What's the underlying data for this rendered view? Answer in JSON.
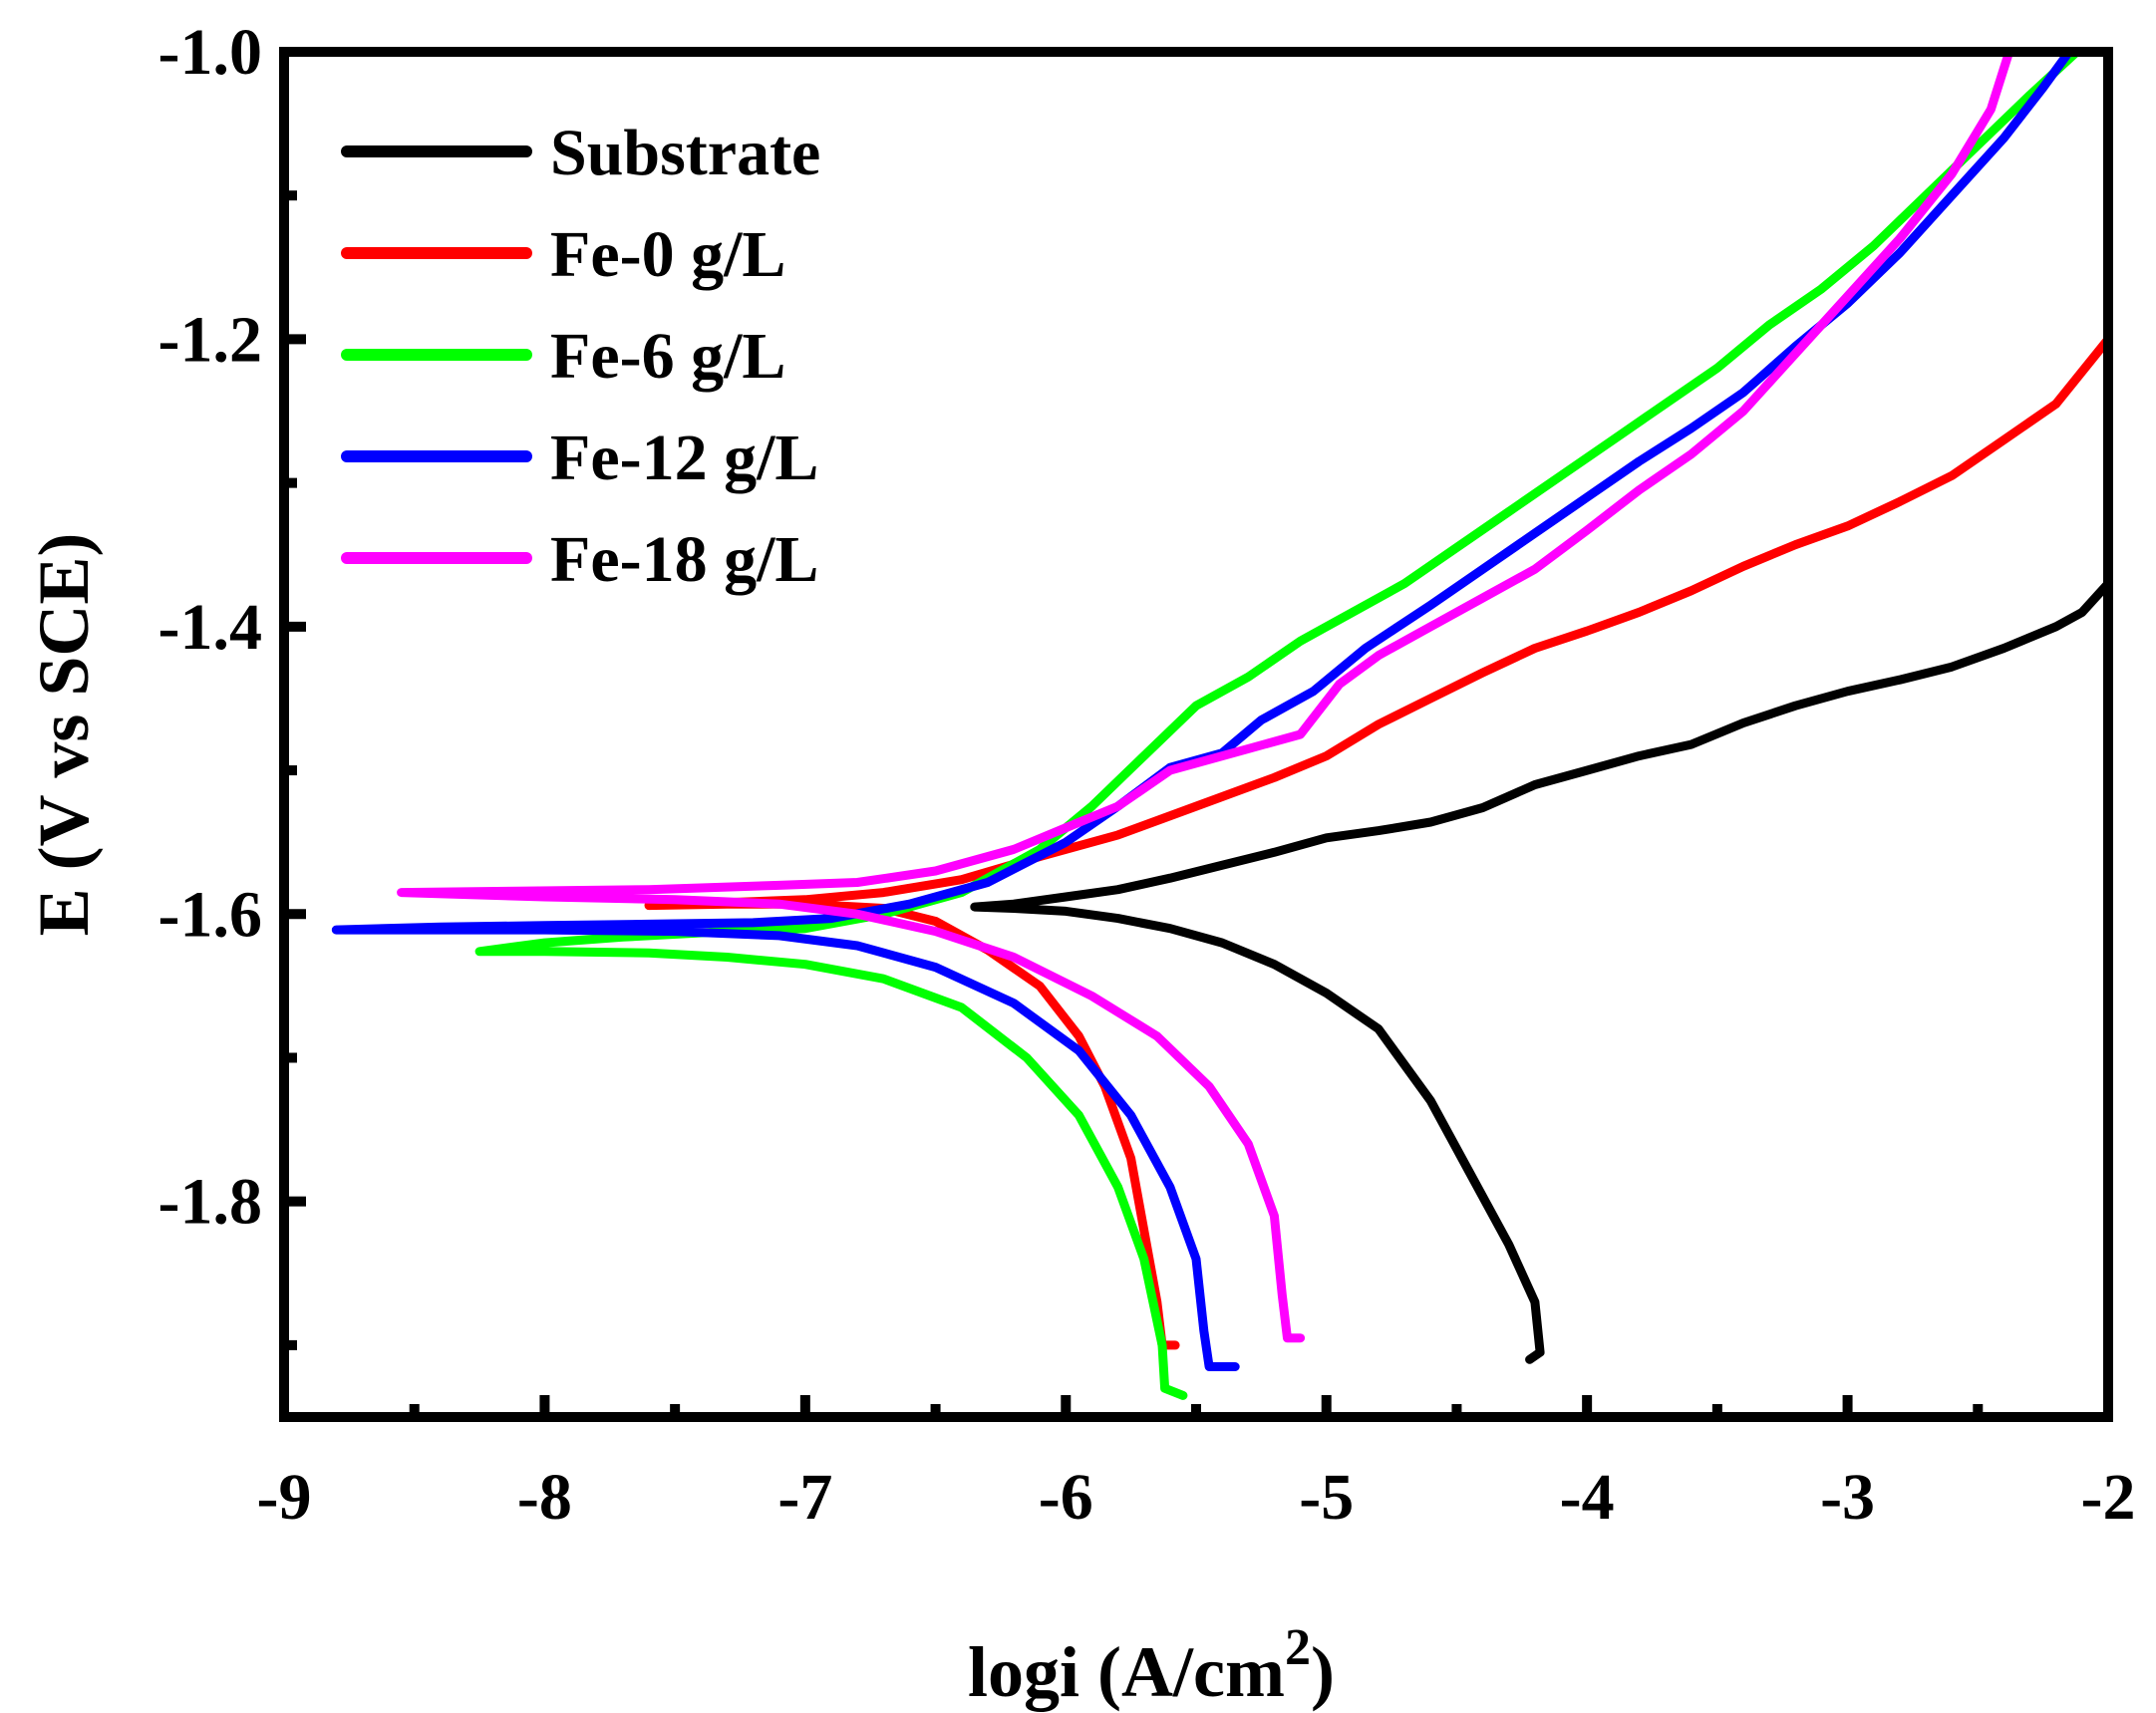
{
  "chart_data": {
    "type": "line",
    "title": "",
    "xlabel": "logi (A/cm",
    "xlabel_superscript": "2",
    "xlabel_close": ")",
    "ylabel": "E (V vs SCE)",
    "xlim": [
      -9,
      -2
    ],
    "ylim": [
      -1.95,
      -1.0
    ],
    "x_ticks": [
      -9,
      -8,
      -7,
      -6,
      -5,
      -4,
      -3,
      -2
    ],
    "x_tick_labels": [
      "-9",
      "-8",
      "-7",
      "-6",
      "-5",
      "-4",
      "-3",
      "-2"
    ],
    "x_minor_ticks": [
      -8.5,
      -7.5,
      -6.5,
      -5.5,
      -4.5,
      -3.5,
      -2.5
    ],
    "y_ticks": [
      -1.0,
      -1.2,
      -1.4,
      -1.6,
      -1.8
    ],
    "y_tick_labels": [
      "-1.0",
      "-1.2",
      "-1.4",
      "-1.6",
      "-1.8"
    ],
    "y_minor_ticks": [
      -1.1,
      -1.3,
      -1.5,
      -1.7,
      -1.9
    ],
    "grid": false,
    "legend_position": "top-left",
    "series": [
      {
        "name": "Substrate",
        "color": "#000000",
        "points": [
          [
            -4.22,
            -1.91
          ],
          [
            -4.18,
            -1.905
          ],
          [
            -4.2,
            -1.87
          ],
          [
            -4.3,
            -1.83
          ],
          [
            -4.45,
            -1.78
          ],
          [
            -4.6,
            -1.73
          ],
          [
            -4.8,
            -1.68
          ],
          [
            -5.0,
            -1.655
          ],
          [
            -5.2,
            -1.635
          ],
          [
            -5.4,
            -1.62
          ],
          [
            -5.6,
            -1.61
          ],
          [
            -5.8,
            -1.603
          ],
          [
            -6.0,
            -1.598
          ],
          [
            -6.2,
            -1.596
          ],
          [
            -6.35,
            -1.595
          ],
          [
            -6.2,
            -1.593
          ],
          [
            -6.0,
            -1.588
          ],
          [
            -5.8,
            -1.583
          ],
          [
            -5.6,
            -1.575
          ],
          [
            -5.4,
            -1.566
          ],
          [
            -5.2,
            -1.557
          ],
          [
            -5.0,
            -1.547
          ],
          [
            -4.8,
            -1.542
          ],
          [
            -4.6,
            -1.536
          ],
          [
            -4.4,
            -1.526
          ],
          [
            -4.2,
            -1.51
          ],
          [
            -4.0,
            -1.5
          ],
          [
            -3.8,
            -1.49
          ],
          [
            -3.6,
            -1.482
          ],
          [
            -3.4,
            -1.467
          ],
          [
            -3.2,
            -1.455
          ],
          [
            -3.0,
            -1.445
          ],
          [
            -2.8,
            -1.437
          ],
          [
            -2.6,
            -1.428
          ],
          [
            -2.4,
            -1.415
          ],
          [
            -2.2,
            -1.4
          ],
          [
            -2.1,
            -1.39
          ],
          [
            -2.0,
            -1.37
          ]
        ]
      },
      {
        "name": "Fe-0 g/L",
        "color": "#ff0000",
        "points": [
          [
            -5.58,
            -1.9
          ],
          [
            -5.63,
            -1.9
          ],
          [
            -5.65,
            -1.87
          ],
          [
            -5.7,
            -1.82
          ],
          [
            -5.75,
            -1.77
          ],
          [
            -5.85,
            -1.72
          ],
          [
            -5.95,
            -1.685
          ],
          [
            -6.1,
            -1.65
          ],
          [
            -6.3,
            -1.625
          ],
          [
            -6.5,
            -1.605
          ],
          [
            -6.7,
            -1.596
          ],
          [
            -7.0,
            -1.593
          ],
          [
            -7.3,
            -1.593
          ],
          [
            -7.6,
            -1.594
          ],
          [
            -7.3,
            -1.592
          ],
          [
            -7.0,
            -1.59
          ],
          [
            -6.7,
            -1.585
          ],
          [
            -6.4,
            -1.576
          ],
          [
            -6.1,
            -1.56
          ],
          [
            -5.8,
            -1.545
          ],
          [
            -5.5,
            -1.525
          ],
          [
            -5.2,
            -1.505
          ],
          [
            -5.0,
            -1.49
          ],
          [
            -4.8,
            -1.468
          ],
          [
            -4.6,
            -1.45
          ],
          [
            -4.4,
            -1.432
          ],
          [
            -4.2,
            -1.415
          ],
          [
            -4.0,
            -1.403
          ],
          [
            -3.8,
            -1.39
          ],
          [
            -3.6,
            -1.375
          ],
          [
            -3.4,
            -1.358
          ],
          [
            -3.2,
            -1.343
          ],
          [
            -3.0,
            -1.33
          ],
          [
            -2.8,
            -1.313
          ],
          [
            -2.6,
            -1.295
          ],
          [
            -2.4,
            -1.27
          ],
          [
            -2.2,
            -1.245
          ],
          [
            -2.0,
            -1.2
          ]
        ]
      },
      {
        "name": "Fe-6 g/L",
        "color": "#00ff00",
        "points": [
          [
            -5.55,
            -1.935
          ],
          [
            -5.62,
            -1.93
          ],
          [
            -5.63,
            -1.9
          ],
          [
            -5.7,
            -1.84
          ],
          [
            -5.8,
            -1.79
          ],
          [
            -5.95,
            -1.74
          ],
          [
            -6.15,
            -1.7
          ],
          [
            -6.4,
            -1.665
          ],
          [
            -6.7,
            -1.645
          ],
          [
            -7.0,
            -1.635
          ],
          [
            -7.3,
            -1.63
          ],
          [
            -7.6,
            -1.627
          ],
          [
            -8.0,
            -1.626
          ],
          [
            -8.25,
            -1.626
          ],
          [
            -8.0,
            -1.62
          ],
          [
            -7.7,
            -1.616
          ],
          [
            -7.3,
            -1.612
          ],
          [
            -7.0,
            -1.61
          ],
          [
            -6.7,
            -1.6
          ],
          [
            -6.4,
            -1.585
          ],
          [
            -6.1,
            -1.555
          ],
          [
            -5.9,
            -1.525
          ],
          [
            -5.7,
            -1.49
          ],
          [
            -5.5,
            -1.455
          ],
          [
            -5.3,
            -1.435
          ],
          [
            -5.1,
            -1.41
          ],
          [
            -4.9,
            -1.39
          ],
          [
            -4.7,
            -1.37
          ],
          [
            -4.5,
            -1.345
          ],
          [
            -4.3,
            -1.32
          ],
          [
            -4.1,
            -1.295
          ],
          [
            -3.9,
            -1.27
          ],
          [
            -3.7,
            -1.245
          ],
          [
            -3.5,
            -1.22
          ],
          [
            -3.3,
            -1.19
          ],
          [
            -3.1,
            -1.165
          ],
          [
            -2.9,
            -1.135
          ],
          [
            -2.7,
            -1.1
          ],
          [
            -2.5,
            -1.065
          ],
          [
            -2.3,
            -1.03
          ],
          [
            -2.12,
            -1.0
          ]
        ]
      },
      {
        "name": "Fe-12 g/L",
        "color": "#0000ff",
        "points": [
          [
            -5.35,
            -1.915
          ],
          [
            -5.45,
            -1.915
          ],
          [
            -5.47,
            -1.89
          ],
          [
            -5.5,
            -1.84
          ],
          [
            -5.6,
            -1.79
          ],
          [
            -5.75,
            -1.74
          ],
          [
            -5.95,
            -1.695
          ],
          [
            -6.2,
            -1.662
          ],
          [
            -6.5,
            -1.637
          ],
          [
            -6.8,
            -1.622
          ],
          [
            -7.1,
            -1.615
          ],
          [
            -7.5,
            -1.612
          ],
          [
            -8.0,
            -1.611
          ],
          [
            -8.5,
            -1.611
          ],
          [
            -8.8,
            -1.611
          ],
          [
            -8.4,
            -1.609
          ],
          [
            -8.0,
            -1.608
          ],
          [
            -7.6,
            -1.607
          ],
          [
            -7.2,
            -1.606
          ],
          [
            -6.9,
            -1.603
          ],
          [
            -6.6,
            -1.593
          ],
          [
            -6.3,
            -1.578
          ],
          [
            -6.0,
            -1.55
          ],
          [
            -5.8,
            -1.525
          ],
          [
            -5.6,
            -1.498
          ],
          [
            -5.4,
            -1.488
          ],
          [
            -5.25,
            -1.465
          ],
          [
            -5.05,
            -1.445
          ],
          [
            -4.85,
            -1.415
          ],
          [
            -4.6,
            -1.385
          ],
          [
            -4.4,
            -1.36
          ],
          [
            -4.2,
            -1.335
          ],
          [
            -4.0,
            -1.31
          ],
          [
            -3.8,
            -1.285
          ],
          [
            -3.6,
            -1.262
          ],
          [
            -3.4,
            -1.237
          ],
          [
            -3.2,
            -1.205
          ],
          [
            -3.0,
            -1.175
          ],
          [
            -2.8,
            -1.14
          ],
          [
            -2.6,
            -1.1
          ],
          [
            -2.4,
            -1.06
          ],
          [
            -2.25,
            -1.025
          ],
          [
            -2.15,
            -1.0
          ]
        ]
      },
      {
        "name": "Fe-18 g/L",
        "color": "#ff00ff",
        "points": [
          [
            -5.1,
            -1.895
          ],
          [
            -5.15,
            -1.895
          ],
          [
            -5.17,
            -1.865
          ],
          [
            -5.2,
            -1.81
          ],
          [
            -5.3,
            -1.76
          ],
          [
            -5.45,
            -1.72
          ],
          [
            -5.65,
            -1.685
          ],
          [
            -5.9,
            -1.657
          ],
          [
            -6.2,
            -1.63
          ],
          [
            -6.5,
            -1.612
          ],
          [
            -6.8,
            -1.6
          ],
          [
            -7.1,
            -1.593
          ],
          [
            -7.5,
            -1.59
          ],
          [
            -8.0,
            -1.588
          ],
          [
            -8.55,
            -1.585
          ],
          [
            -8.1,
            -1.584
          ],
          [
            -7.6,
            -1.583
          ],
          [
            -7.1,
            -1.58
          ],
          [
            -6.8,
            -1.578
          ],
          [
            -6.5,
            -1.57
          ],
          [
            -6.2,
            -1.555
          ],
          [
            -6.0,
            -1.54
          ],
          [
            -5.8,
            -1.525
          ],
          [
            -5.6,
            -1.5
          ],
          [
            -5.3,
            -1.485
          ],
          [
            -5.1,
            -1.475
          ],
          [
            -4.95,
            -1.44
          ],
          [
            -4.8,
            -1.42
          ],
          [
            -4.6,
            -1.4
          ],
          [
            -4.4,
            -1.38
          ],
          [
            -4.2,
            -1.36
          ],
          [
            -4.0,
            -1.333
          ],
          [
            -3.8,
            -1.305
          ],
          [
            -3.6,
            -1.28
          ],
          [
            -3.4,
            -1.25
          ],
          [
            -3.2,
            -1.21
          ],
          [
            -3.0,
            -1.17
          ],
          [
            -2.8,
            -1.13
          ],
          [
            -2.6,
            -1.085
          ],
          [
            -2.45,
            -1.04
          ],
          [
            -2.38,
            -1.0
          ]
        ]
      }
    ]
  }
}
